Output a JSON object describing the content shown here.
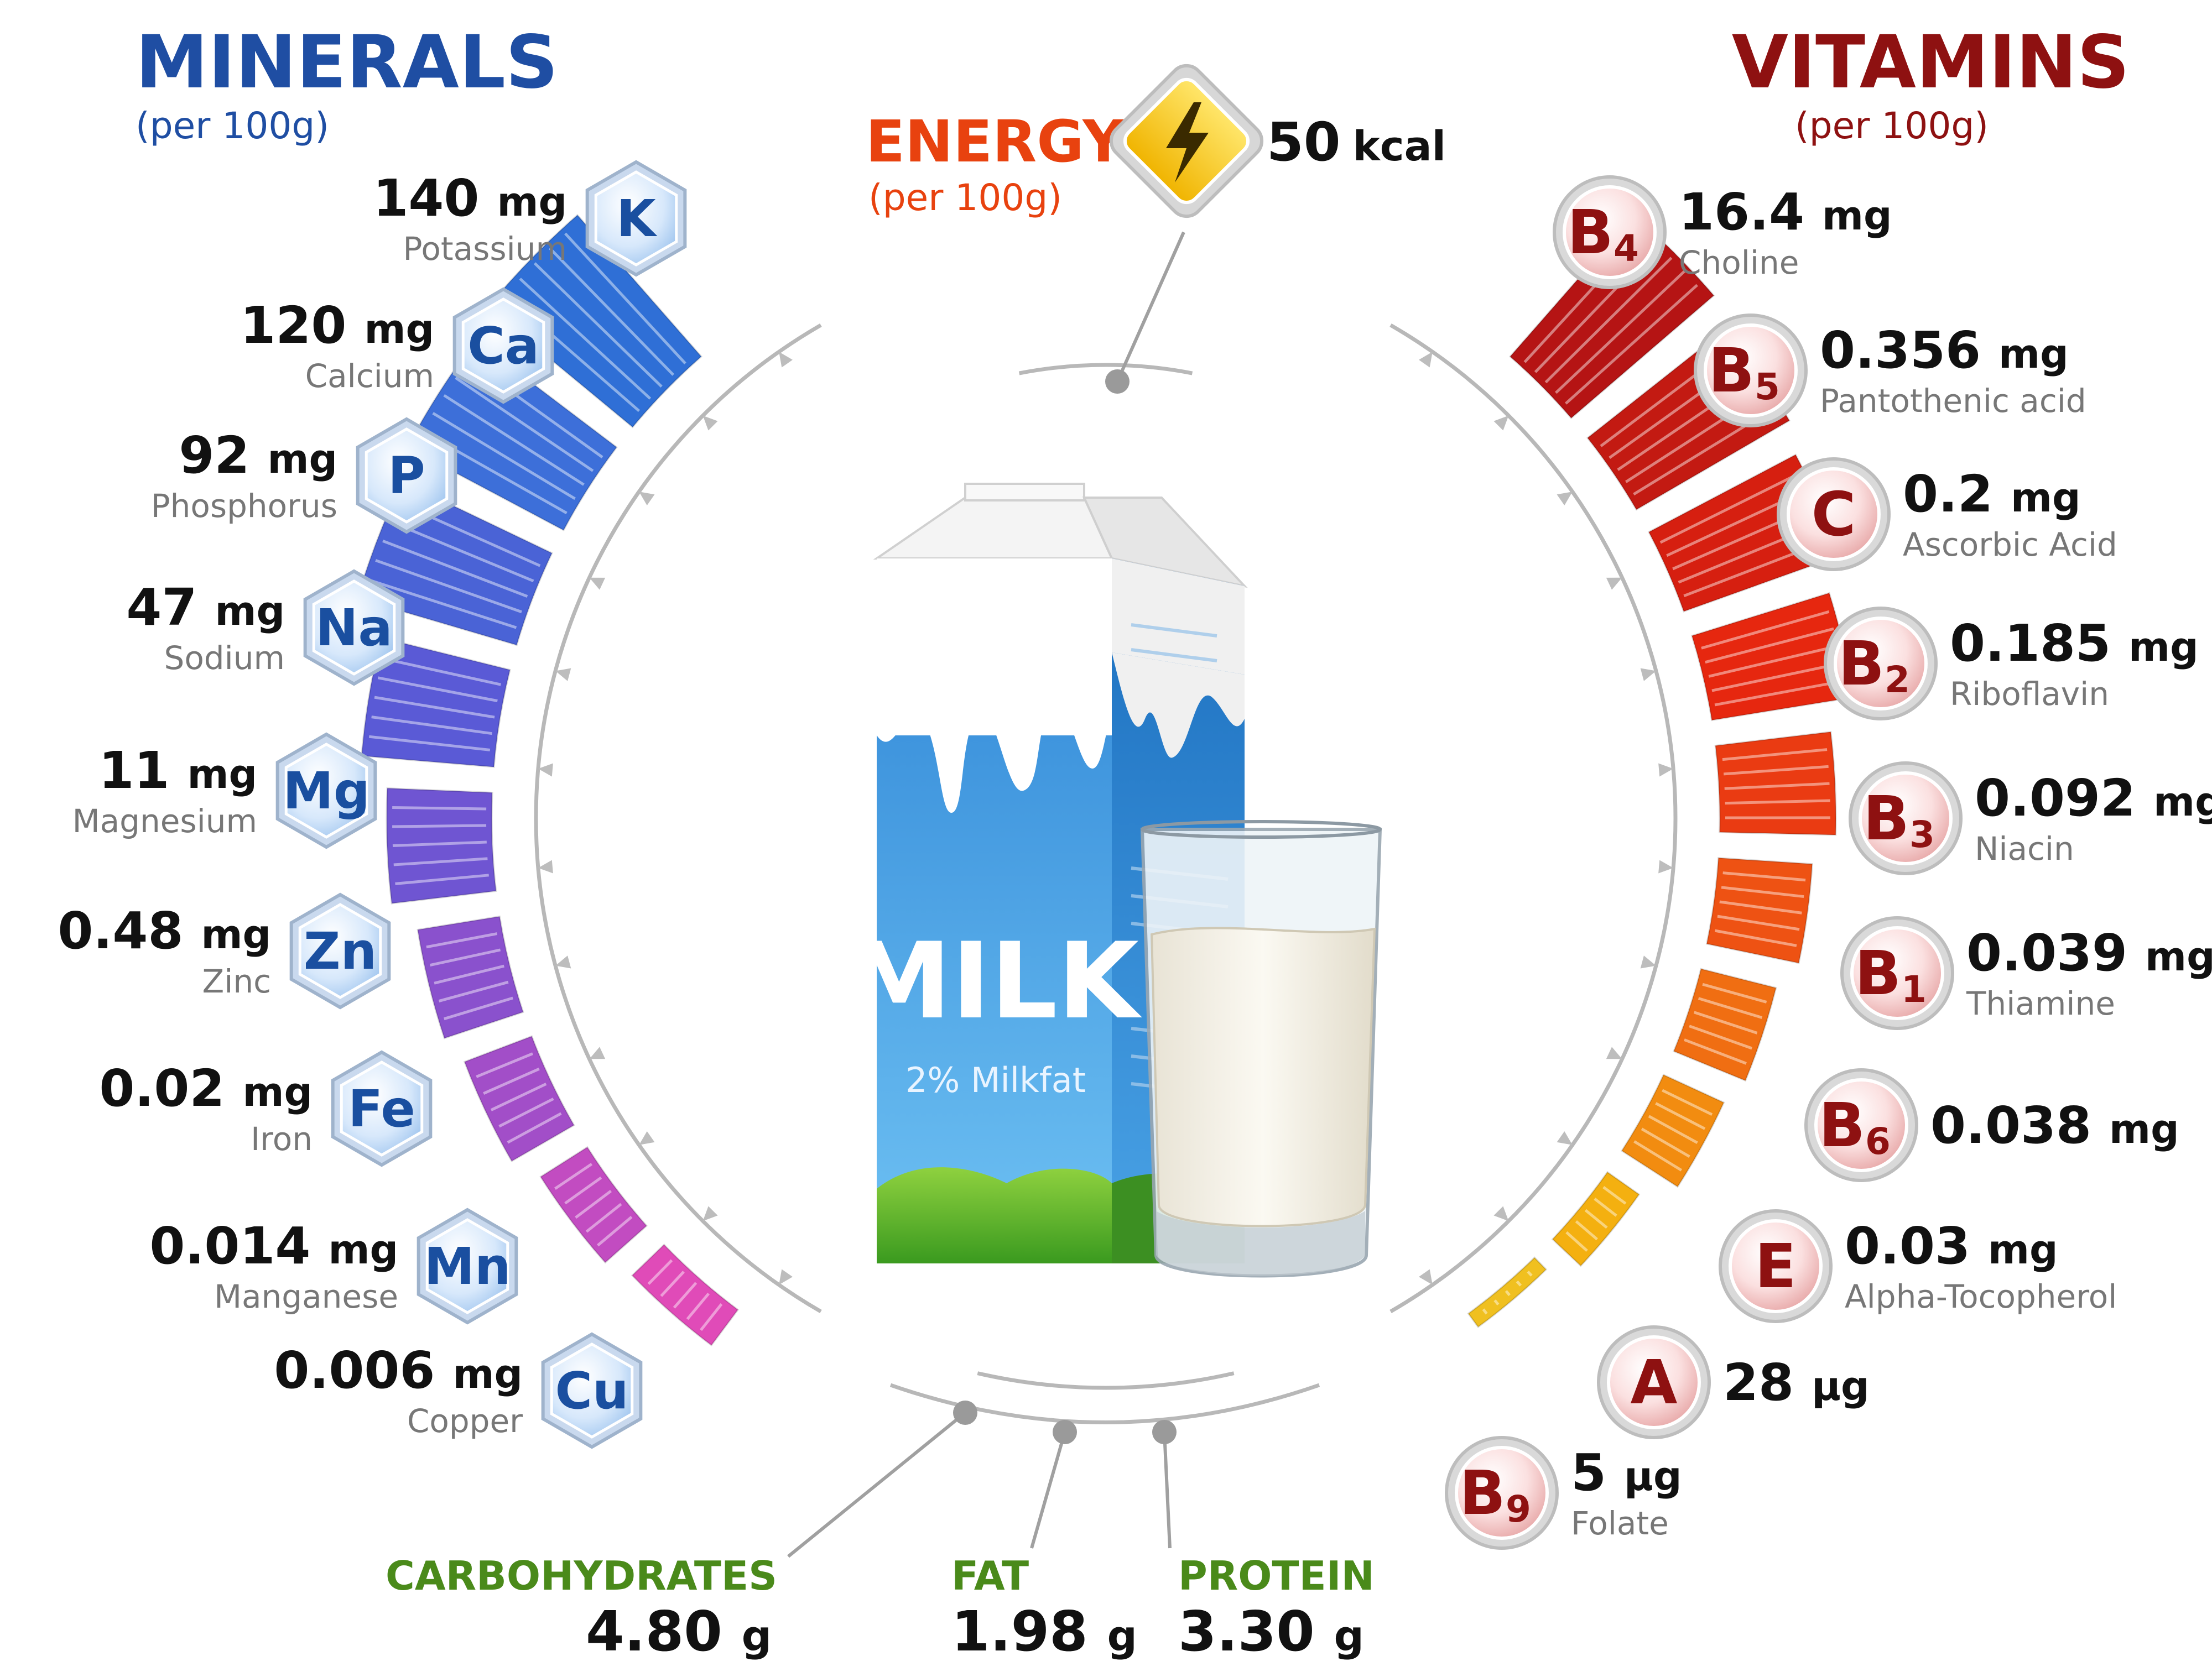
{
  "minerals": {
    "title": "MINERALS",
    "subtitle": "(per 100g)",
    "color": "#1f4ea3",
    "items": [
      {
        "symbol": "K",
        "amount": "140",
        "unit": "mg",
        "name": "Potassium"
      },
      {
        "symbol": "Ca",
        "amount": "120",
        "unit": "mg",
        "name": "Calcium"
      },
      {
        "symbol": "P",
        "amount": "92",
        "unit": "mg",
        "name": "Phosphorus"
      },
      {
        "symbol": "Na",
        "amount": "47",
        "unit": "mg",
        "name": "Sodium"
      },
      {
        "symbol": "Mg",
        "amount": "11",
        "unit": "mg",
        "name": "Magnesium"
      },
      {
        "symbol": "Zn",
        "amount": "0.48",
        "unit": "mg",
        "name": "Zinc"
      },
      {
        "symbol": "Fe",
        "amount": "0.02",
        "unit": "mg",
        "name": "Iron"
      },
      {
        "symbol": "Mn",
        "amount": "0.014",
        "unit": "mg",
        "name": "Manganese"
      },
      {
        "symbol": "Cu",
        "amount": "0.006",
        "unit": "mg",
        "name": "Copper"
      }
    ]
  },
  "vitamins": {
    "title": "VITAMINS",
    "subtitle": "(per 100g)",
    "color": "#8e1111",
    "items": [
      {
        "symbol": "B",
        "sub": "4",
        "amount": "16.4",
        "unit": "mg",
        "name": "Choline"
      },
      {
        "symbol": "B",
        "sub": "5",
        "amount": "0.356",
        "unit": "mg",
        "name": "Pantothenic acid"
      },
      {
        "symbol": "C",
        "sub": "",
        "amount": "0.2",
        "unit": "mg",
        "name": "Ascorbic Acid"
      },
      {
        "symbol": "B",
        "sub": "2",
        "amount": "0.185",
        "unit": "mg",
        "name": "Riboflavin"
      },
      {
        "symbol": "B",
        "sub": "3",
        "amount": "0.092",
        "unit": "mg",
        "name": "Niacin"
      },
      {
        "symbol": "B",
        "sub": "1",
        "amount": "0.039",
        "unit": "mg",
        "name": "Thiamine"
      },
      {
        "symbol": "B",
        "sub": "6",
        "amount": "0.038",
        "unit": "mg",
        "name": ""
      },
      {
        "symbol": "E",
        "sub": "",
        "amount": "0.03",
        "unit": "mg",
        "name": "Alpha-Tocopherol"
      },
      {
        "symbol": "A",
        "sub": "",
        "amount": "28",
        "unit": "µg",
        "name": ""
      },
      {
        "symbol": "B",
        "sub": "9",
        "amount": "5",
        "unit": "µg",
        "name": "Folate"
      }
    ]
  },
  "energy": {
    "title": "ENERGY",
    "subtitle": "(per 100g)",
    "amount": "50",
    "unit": "kcal",
    "color": "#e8420f"
  },
  "macros": [
    {
      "name": "CARBOHYDRATES",
      "amount": "4.80",
      "unit": "g"
    },
    {
      "name": "FAT",
      "amount": "1.98",
      "unit": "g"
    },
    {
      "name": "PROTEIN",
      "amount": "3.30",
      "unit": "g"
    }
  ],
  "carton": {
    "label": "MILK",
    "sublabel": "2% Milkfat"
  },
  "colors": {
    "macro": "#4a8a1a",
    "vitamin_badge": "#8e1111",
    "mineral_badge": "#1a4fa0"
  }
}
